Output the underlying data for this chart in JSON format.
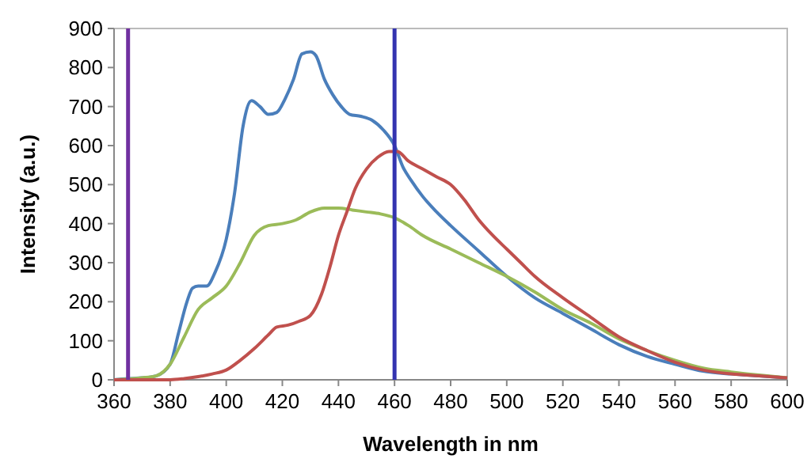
{
  "chart_data": {
    "type": "line",
    "xlabel": "Wavelength in nm",
    "ylabel": "Intensity (a.u.)",
    "xlim": [
      360,
      600
    ],
    "xticks": [
      360,
      380,
      400,
      420,
      440,
      460,
      480,
      500,
      520,
      540,
      560,
      580,
      600
    ],
    "ylim": [
      0,
      900
    ],
    "yticks": [
      0,
      100,
      200,
      300,
      400,
      500,
      600,
      700,
      800,
      900
    ],
    "grid": false,
    "line_style": "solid",
    "ref_lines": [
      {
        "axis": "x",
        "value": 365,
        "color": "#7030a0"
      },
      {
        "axis": "x",
        "value": 460,
        "color": "#3333b0"
      }
    ],
    "series": [
      {
        "color": "#4a7ebb",
        "x": [
          360,
          365,
          370,
          375,
          380,
          383,
          386,
          388,
          390,
          393,
          396,
          400,
          403,
          406,
          409,
          412,
          415,
          418,
          421,
          424,
          427,
          430,
          432,
          435,
          438,
          441,
          444,
          448,
          452,
          456,
          460,
          463,
          466,
          470,
          475,
          480,
          490,
          500,
          510,
          520,
          530,
          540,
          550,
          560,
          570,
          580,
          590,
          600
        ],
        "values": [
          0,
          3,
          5,
          10,
          40,
          120,
          200,
          235,
          240,
          240,
          275,
          360,
          480,
          650,
          715,
          700,
          680,
          685,
          720,
          770,
          835,
          840,
          830,
          770,
          730,
          700,
          680,
          675,
          665,
          640,
          600,
          545,
          510,
          470,
          430,
          395,
          330,
          265,
          210,
          170,
          130,
          90,
          60,
          40,
          22,
          15,
          10,
          5
        ]
      },
      {
        "color": "#9bbb59",
        "x": [
          360,
          370,
          375,
          380,
          385,
          390,
          395,
          400,
          405,
          410,
          415,
          420,
          425,
          430,
          435,
          440,
          445,
          450,
          455,
          460,
          465,
          470,
          480,
          490,
          500,
          510,
          520,
          530,
          540,
          550,
          560,
          570,
          580,
          590,
          600
        ],
        "values": [
          0,
          5,
          10,
          40,
          110,
          180,
          210,
          240,
          300,
          370,
          395,
          400,
          410,
          430,
          440,
          440,
          435,
          430,
          425,
          415,
          395,
          370,
          335,
          300,
          265,
          225,
          180,
          145,
          105,
          75,
          50,
          30,
          20,
          12,
          5
        ]
      },
      {
        "color": "#c0504d",
        "x": [
          360,
          380,
          385,
          390,
          395,
          400,
          405,
          410,
          415,
          418,
          422,
          426,
          430,
          434,
          437,
          440,
          443,
          446,
          450,
          454,
          458,
          461,
          465,
          470,
          475,
          480,
          485,
          490,
          495,
          500,
          505,
          510,
          520,
          530,
          540,
          550,
          560,
          570,
          580,
          590,
          600
        ],
        "values": [
          0,
          0,
          3,
          8,
          15,
          25,
          50,
          80,
          115,
          135,
          140,
          150,
          165,
          220,
          290,
          370,
          430,
          490,
          540,
          570,
          585,
          585,
          560,
          540,
          520,
          500,
          460,
          410,
          370,
          335,
          300,
          265,
          210,
          160,
          110,
          75,
          45,
          25,
          15,
          10,
          5
        ]
      }
    ]
  }
}
